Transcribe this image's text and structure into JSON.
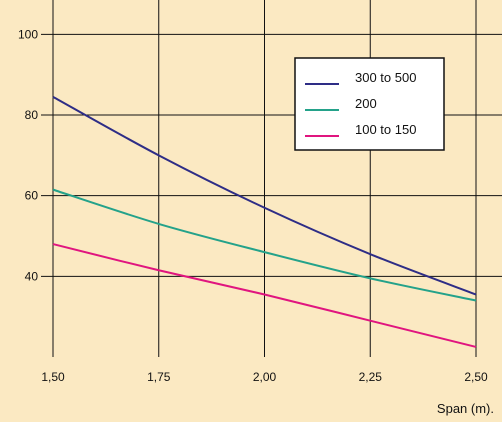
{
  "chart_data": {
    "type": "line",
    "xlabel": "Span (m).",
    "ylabel": "",
    "xlim": [
      1.5,
      2.5
    ],
    "ylim": [
      20,
      110
    ],
    "x_ticks": [
      1.5,
      1.75,
      2.0,
      2.25,
      2.5
    ],
    "x_tick_labels": [
      "1,50",
      "1,75",
      "2,00",
      "2,25",
      "2,50"
    ],
    "y_ticks": [
      40,
      60,
      80,
      100
    ],
    "y_tick_labels": [
      "40",
      "60",
      "80",
      "100"
    ],
    "grid": true,
    "legend_position": "top-right",
    "background_color": "#fbe9c2",
    "series": [
      {
        "name": "300 to 500",
        "color": "#2e2d86",
        "x": [
          1.5,
          1.75,
          2.0,
          2.25,
          2.5
        ],
        "y": [
          84.5,
          70,
          57,
          45.5,
          35.5
        ]
      },
      {
        "name": "200",
        "color": "#24a28a",
        "x": [
          1.5,
          1.75,
          2.0,
          2.25,
          2.5
        ],
        "y": [
          61.5,
          53,
          46,
          39.5,
          34
        ]
      },
      {
        "name": "100 to 150",
        "color": "#e0157f",
        "x": [
          1.5,
          1.75,
          2.0,
          2.25,
          2.5
        ],
        "y": [
          48,
          41.5,
          35.5,
          29,
          22.5
        ]
      }
    ]
  }
}
